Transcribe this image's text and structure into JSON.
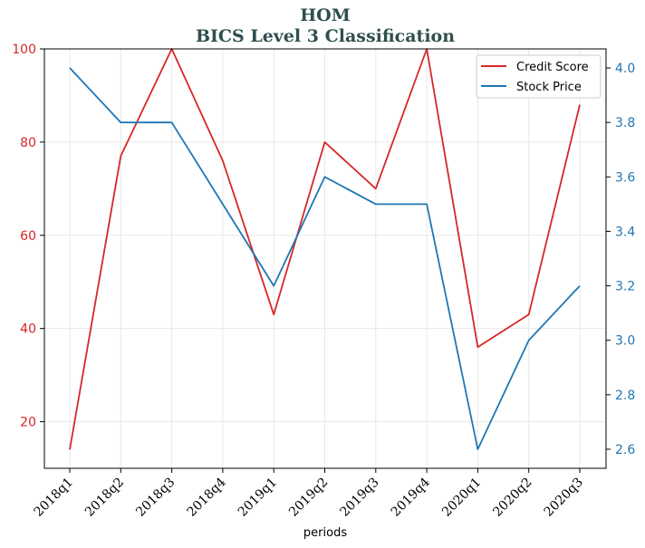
{
  "chart_data": {
    "type": "line",
    "title": "HOM",
    "subtitle": "BICS Level 3 Classification",
    "xlabel": "periods",
    "categories": [
      "2018q1",
      "2018q2",
      "2018q3",
      "2018q4",
      "2019q1",
      "2019q2",
      "2019q3",
      "2019q4",
      "2020q1",
      "2020q2",
      "2020q3"
    ],
    "left_axis": {
      "ylim": [
        10,
        100
      ],
      "ticks": [
        20,
        40,
        60,
        80,
        100
      ],
      "color": "#d62728"
    },
    "right_axis": {
      "ylim": [
        2.53,
        4.07
      ],
      "ticks": [
        2.6,
        2.8,
        3.0,
        3.2,
        3.4,
        3.6,
        3.8,
        4.0
      ],
      "tick_labels": [
        "2.6",
        "2.8",
        "3.0",
        "3.2",
        "3.4",
        "3.6",
        "3.8",
        "4.0"
      ],
      "color": "#1f77b4"
    },
    "series": [
      {
        "name": "Credit Score",
        "axis": "left",
        "color": "#d62728",
        "values": [
          14,
          77,
          100,
          76,
          43,
          80,
          70,
          100,
          36,
          43,
          88
        ]
      },
      {
        "name": "Stock Price",
        "axis": "right",
        "color": "#1f77b4",
        "values": [
          4.0,
          3.8,
          3.8,
          3.5,
          3.2,
          3.6,
          3.5,
          3.5,
          2.6,
          3.0,
          3.2
        ]
      }
    ],
    "grid": true,
    "legend": "top-right"
  }
}
